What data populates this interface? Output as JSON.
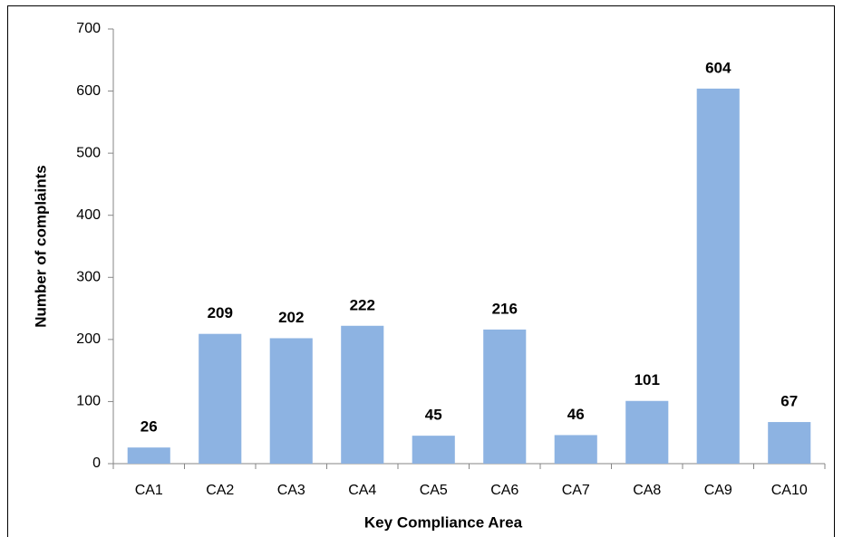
{
  "chart_data": {
    "type": "bar",
    "x_label": "Key Compliance Area",
    "y_label": "Number of complaints",
    "categories": [
      "CA1",
      "CA2",
      "CA3",
      "CA4",
      "CA5",
      "CA6",
      "CA7",
      "CA8",
      "CA9",
      "CA10"
    ],
    "values": [
      26,
      209,
      202,
      222,
      45,
      216,
      46,
      101,
      604,
      67
    ],
    "color": "#8db3e2",
    "ylim": [
      0,
      700
    ],
    "yticks": [
      0,
      100,
      200,
      300,
      400,
      500,
      600,
      700
    ],
    "grid": false
  }
}
